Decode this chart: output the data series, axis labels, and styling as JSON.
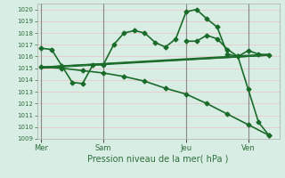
{
  "title": "",
  "xlabel": "Pression niveau de la mer( hPa )",
  "bg_color": "#d8ede4",
  "grid_color_h": "#e8c8c8",
  "grid_color_v": "#e8c8c8",
  "line_color": "#1a6b2a",
  "vline_color": "#888888",
  "ylim": [
    1009,
    1020.5
  ],
  "yticks": [
    1009,
    1010,
    1011,
    1012,
    1013,
    1014,
    1015,
    1016,
    1017,
    1018,
    1019,
    1020
  ],
  "day_labels": [
    "Mer",
    "Sam",
    "Jeu",
    "Ven"
  ],
  "day_positions": [
    0,
    3,
    7,
    10
  ],
  "xlim": [
    -0.2,
    11.5
  ],
  "series": [
    {
      "x": [
        0,
        0.5,
        1,
        1.5,
        2,
        2.5,
        3,
        3.5,
        4,
        4.5,
        5,
        5.5,
        6,
        6.5,
        7,
        7.5,
        8,
        8.5,
        9,
        9.5,
        10,
        10.5,
        11
      ],
      "y": [
        1016.7,
        1016.6,
        1015.2,
        1013.8,
        1013.7,
        1015.3,
        1015.3,
        1017.0,
        1018.0,
        1018.2,
        1018.0,
        1017.2,
        1016.8,
        1017.5,
        1019.8,
        1020.0,
        1019.2,
        1018.5,
        1016.2,
        1016.0,
        1016.5,
        1016.2,
        1016.1
      ],
      "marker": "D",
      "markersize": 2.5,
      "linewidth": 1.2
    },
    {
      "x": [
        0,
        11
      ],
      "y": [
        1015.1,
        1016.1
      ],
      "marker": "",
      "markersize": 0,
      "linewidth": 1.0
    },
    {
      "x": [
        0,
        11
      ],
      "y": [
        1015.1,
        1016.2
      ],
      "marker": "",
      "markersize": 0,
      "linewidth": 1.0
    },
    {
      "x": [
        0,
        11
      ],
      "y": [
        1015.0,
        1016.1
      ],
      "marker": "",
      "markersize": 0,
      "linewidth": 0.8
    },
    {
      "x": [
        0,
        1,
        2,
        3,
        4,
        5,
        6,
        7,
        8,
        9,
        10,
        11
      ],
      "y": [
        1015.1,
        1015.0,
        1014.8,
        1014.6,
        1014.3,
        1013.9,
        1013.3,
        1012.8,
        1012.0,
        1011.1,
        1010.2,
        1009.3
      ],
      "marker": "D",
      "markersize": 2.5,
      "linewidth": 1.2
    },
    {
      "x": [
        7,
        7.5,
        8,
        8.5,
        9,
        9.5,
        10,
        10.5,
        11
      ],
      "y": [
        1017.3,
        1017.3,
        1017.8,
        1017.5,
        1016.6,
        1016.0,
        1013.2,
        1010.4,
        1009.3
      ],
      "marker": "D",
      "markersize": 2.5,
      "linewidth": 1.2
    }
  ],
  "font_color": "#2d6e3a",
  "tick_fontsize": 5.0,
  "xlabel_fontsize": 7.0,
  "xtick_fontsize": 6.0
}
